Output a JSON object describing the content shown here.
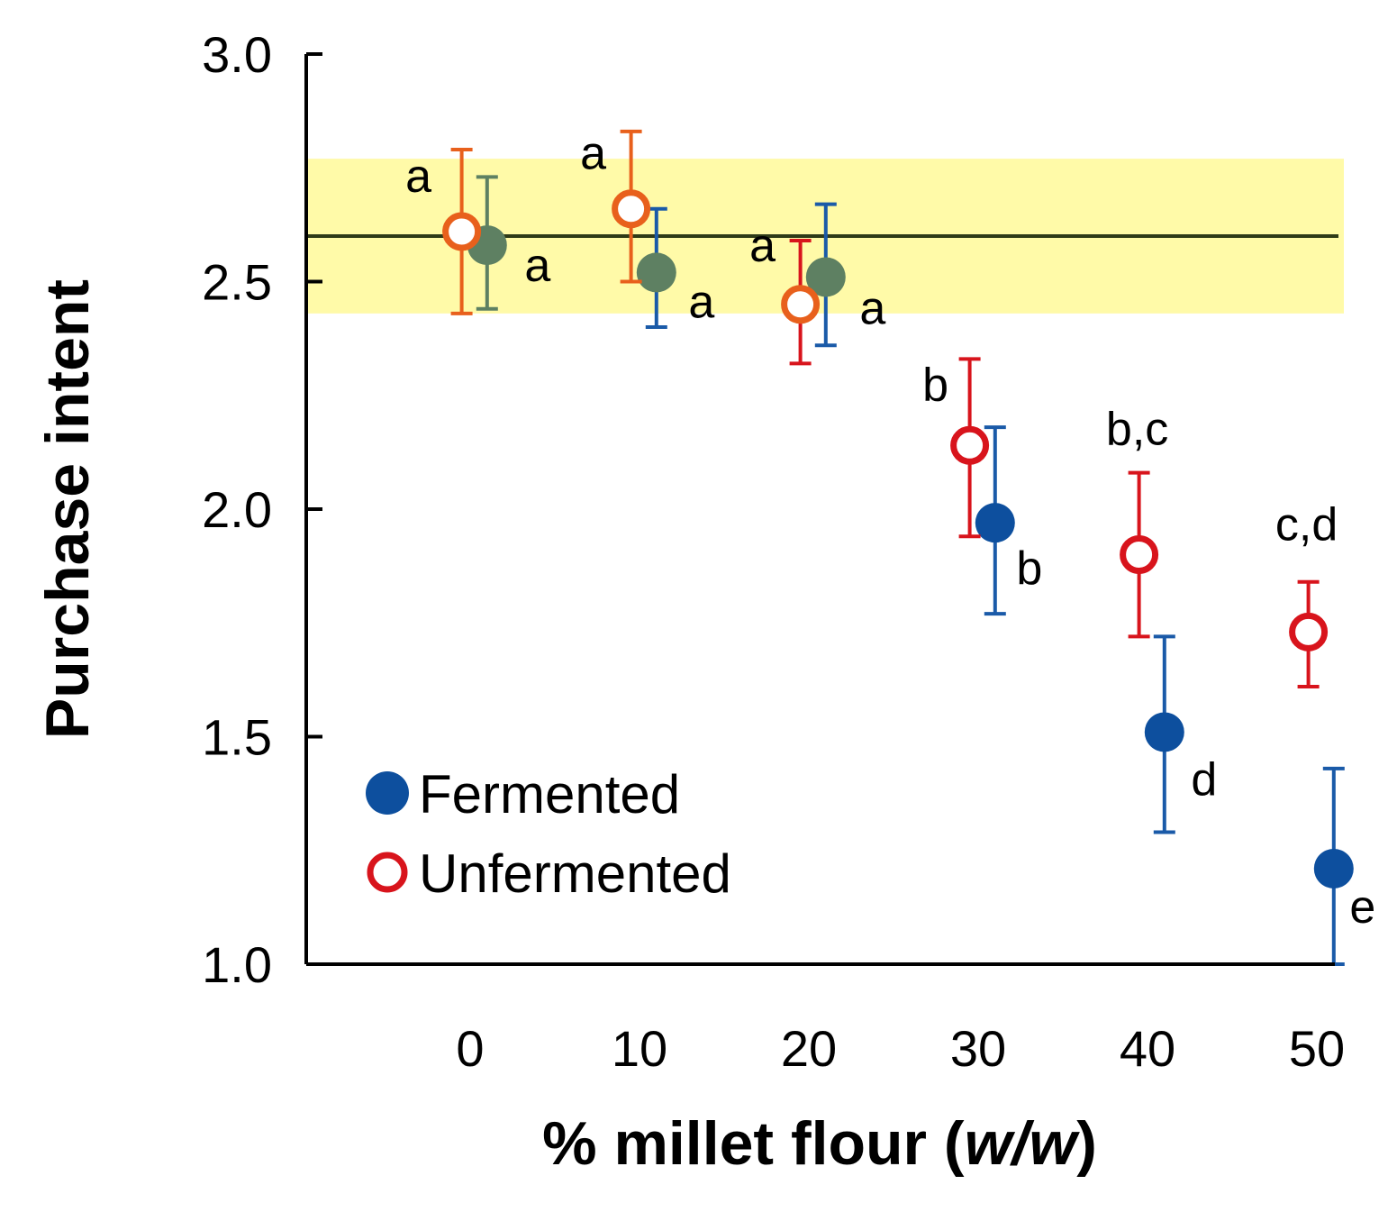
{
  "chart_data": {
    "type": "scatter",
    "title": "",
    "xlabel": "% millet flour (",
    "xlabel_italic": "w/w",
    "xlabel_end": ")",
    "ylabel": "Purchase intent",
    "ylim": [
      1.0,
      3.0
    ],
    "yticks": [
      "1.0",
      "1.5",
      "2.0",
      "2.5",
      "3.0"
    ],
    "categories": [
      "0",
      "10",
      "20",
      "30",
      "40",
      "50"
    ],
    "reference": {
      "value": 2.6,
      "band": [
        2.43,
        2.77
      ],
      "band_color": "#fffaa8",
      "line_color": "#2e3a17"
    },
    "legend_position": "bottom-left",
    "series": [
      {
        "name": "Fermented",
        "marker": "filled",
        "x": [
          1,
          11,
          21,
          31,
          41,
          51
        ],
        "values": [
          2.58,
          2.52,
          2.51,
          1.97,
          1.51,
          1.21
        ],
        "err_low": [
          2.44,
          2.4,
          2.36,
          1.77,
          1.29,
          1.0
        ],
        "err_high": [
          2.73,
          2.66,
          2.67,
          2.18,
          1.72,
          1.43
        ],
        "colors": [
          "#5e8062",
          "#5e8062",
          "#5e8062",
          "#0d4f9e",
          "#0d4f9e",
          "#0d4f9e"
        ],
        "err_colors": [
          "#5e8062",
          "#1a5aa8",
          "#1a5aa8",
          "#1a5aa8",
          "#1a5aa8",
          "#1a5aa8"
        ],
        "labels": [
          "a",
          "a",
          "a",
          "b",
          "d",
          "e"
        ]
      },
      {
        "name": "Unfermented",
        "marker": "open",
        "x": [
          -0.5,
          9.5,
          19.5,
          29.5,
          39.5,
          49.5
        ],
        "values": [
          2.61,
          2.66,
          2.45,
          2.14,
          1.9,
          1.73
        ],
        "err_low": [
          2.43,
          2.5,
          2.32,
          1.94,
          1.72,
          1.61
        ],
        "err_high": [
          2.79,
          2.83,
          2.59,
          2.33,
          2.08,
          1.84
        ],
        "colors": [
          "#e8601c",
          "#e8601c",
          "#e8601c",
          "#d8141c",
          "#d8141c",
          "#d8141c"
        ],
        "err_colors": [
          "#e8601c",
          "#e8601c",
          "#d8141c",
          "#d8141c",
          "#d8141c",
          "#d8141c"
        ],
        "labels": [
          "a",
          "a",
          "a",
          "b",
          "b,c",
          "c,d"
        ]
      }
    ],
    "legend": [
      {
        "label": "Fermented",
        "color": "#0d4f9e",
        "marker": "filled"
      },
      {
        "label": "Unfermented",
        "color": "#d8141c",
        "marker": "open"
      }
    ]
  }
}
